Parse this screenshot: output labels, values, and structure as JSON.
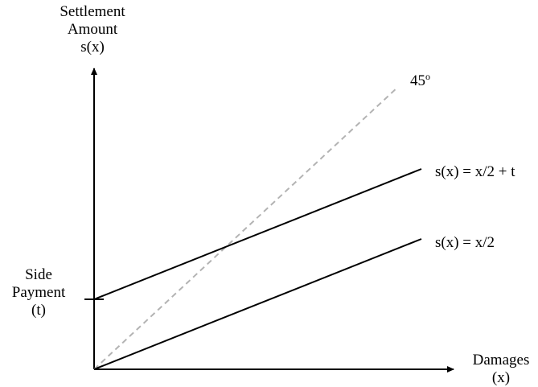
{
  "chart_data": {
    "type": "line",
    "title": "",
    "ylabel": [
      "Settlement",
      "Amount",
      "s(x)"
    ],
    "xlabel": [
      "Damages",
      "(x)"
    ],
    "intercept_label": [
      "Side",
      "Payment",
      "(t)"
    ],
    "reference_line": {
      "label_text": "45",
      "label_superscript": "o",
      "style": "dashed",
      "color": "#b3b3b3",
      "slope": 1
    },
    "series": [
      {
        "name": "s(x) = x/2 + t",
        "slope": 0.5,
        "intercept": "t",
        "color": "#000000"
      },
      {
        "name": "s(x) = x/2",
        "slope": 0.5,
        "intercept": 0,
        "color": "#000000"
      }
    ]
  }
}
